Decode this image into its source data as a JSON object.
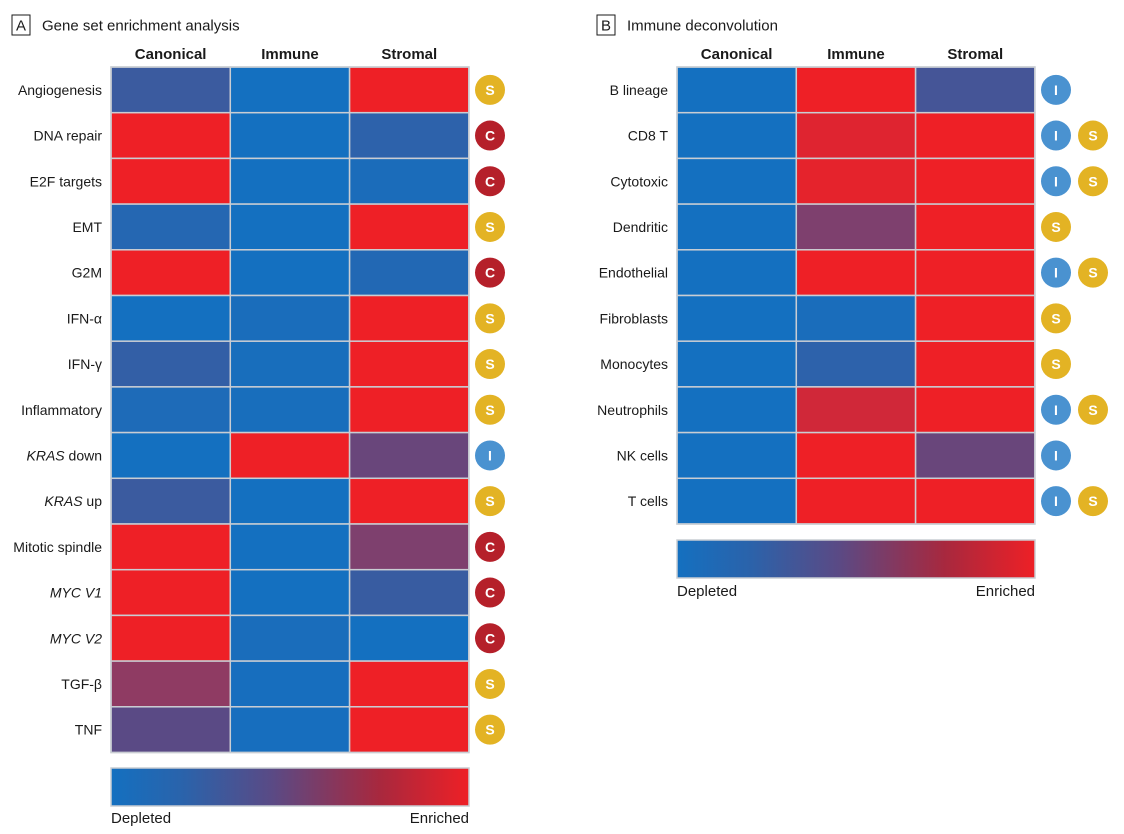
{
  "colors": {
    "depleted": "#1470c0",
    "mid": "#5a4a85",
    "enriched": "#ee2026",
    "badge_C": "#b5202a",
    "badge_S": "#e3b324",
    "badge_I": "#4a92d0"
  },
  "legend": {
    "low_label": "Depleted",
    "high_label": "Enriched"
  },
  "chart_data": [
    {
      "type": "heatmap",
      "panel_letter": "A",
      "title": "Gene set enrichment analysis",
      "columns": [
        "Canonical",
        "Immune",
        "Stromal"
      ],
      "value_range": [
        0,
        1
      ],
      "rows": [
        {
          "label": "Angiogenesis",
          "italic": "",
          "rest": "",
          "values": [
            0.28,
            0.0,
            1.0
          ],
          "badges": [
            "S"
          ]
        },
        {
          "label": "DNA repair",
          "italic": "",
          "rest": "",
          "values": [
            1.0,
            0.0,
            0.18
          ],
          "badges": [
            "C"
          ]
        },
        {
          "label": "E2F targets",
          "italic": "",
          "rest": "",
          "values": [
            1.0,
            0.0,
            0.05
          ],
          "badges": [
            "C"
          ]
        },
        {
          "label": "EMT",
          "italic": "",
          "rest": "",
          "values": [
            0.12,
            0.0,
            1.0
          ],
          "badges": [
            "S"
          ]
        },
        {
          "label": "G2M",
          "italic": "",
          "rest": "",
          "values": [
            1.0,
            0.0,
            0.1
          ],
          "badges": [
            "C"
          ]
        },
        {
          "label": "IFN-α",
          "italic": "",
          "rest": "",
          "values": [
            0.0,
            0.04,
            1.0
          ],
          "badges": [
            "S"
          ]
        },
        {
          "label": "IFN-γ",
          "italic": "",
          "rest": "",
          "values": [
            0.22,
            0.03,
            1.0
          ],
          "badges": [
            "S"
          ]
        },
        {
          "label": "Inflammatory",
          "italic": "",
          "rest": "",
          "values": [
            0.07,
            0.03,
            1.0
          ],
          "badges": [
            "S"
          ]
        },
        {
          "label": "KRAS down",
          "italic": "KRAS",
          "rest": " down",
          "values": [
            0.0,
            1.0,
            0.55
          ],
          "badges": [
            "I"
          ]
        },
        {
          "label": "KRAS up",
          "italic": "KRAS",
          "rest": " up",
          "values": [
            0.28,
            0.0,
            1.0
          ],
          "badges": [
            "S"
          ]
        },
        {
          "label": "Mitotic spindle",
          "italic": "",
          "rest": "",
          "values": [
            1.0,
            0.0,
            0.62
          ],
          "badges": [
            "C"
          ]
        },
        {
          "label": "MYC V1",
          "italic": "MYC V1",
          "rest": "",
          "values": [
            1.0,
            0.0,
            0.26
          ],
          "badges": [
            "C"
          ]
        },
        {
          "label": "MYC V2",
          "italic": "MYC V2",
          "rest": "",
          "values": [
            1.0,
            0.04,
            0.0
          ],
          "badges": [
            "C"
          ]
        },
        {
          "label": "TGF-β",
          "italic": "",
          "rest": "",
          "values": [
            0.68,
            0.02,
            1.0
          ],
          "badges": [
            "S"
          ]
        },
        {
          "label": "TNF",
          "italic": "",
          "rest": "",
          "values": [
            0.5,
            0.02,
            1.0
          ],
          "badges": [
            "S"
          ]
        }
      ]
    },
    {
      "type": "heatmap",
      "panel_letter": "B",
      "title": "Immune deconvolution",
      "columns": [
        "Canonical",
        "Immune",
        "Stromal"
      ],
      "value_range": [
        0,
        1
      ],
      "rows": [
        {
          "label": "B lineage",
          "italic": "",
          "rest": "",
          "values": [
            0.0,
            1.0,
            0.35
          ],
          "badges": [
            "I"
          ]
        },
        {
          "label": "CD8 T",
          "italic": "",
          "rest": "",
          "values": [
            0.0,
            0.95,
            1.0
          ],
          "badges": [
            "I",
            "S"
          ]
        },
        {
          "label": "Cytotoxic",
          "italic": "",
          "rest": "",
          "values": [
            0.0,
            0.97,
            1.0
          ],
          "badges": [
            "I",
            "S"
          ]
        },
        {
          "label": "Dendritic",
          "italic": "",
          "rest": "",
          "values": [
            0.0,
            0.62,
            1.0
          ],
          "badges": [
            "S"
          ]
        },
        {
          "label": "Endothelial",
          "italic": "",
          "rest": "",
          "values": [
            0.0,
            1.0,
            1.0
          ],
          "badges": [
            "I",
            "S"
          ]
        },
        {
          "label": "Fibroblasts",
          "italic": "",
          "rest": "",
          "values": [
            0.0,
            0.04,
            1.0
          ],
          "badges": [
            "S"
          ]
        },
        {
          "label": "Monocytes",
          "italic": "",
          "rest": "",
          "values": [
            0.0,
            0.18,
            1.0
          ],
          "badges": [
            "S"
          ]
        },
        {
          "label": "Neutrophils",
          "italic": "",
          "rest": "",
          "values": [
            0.0,
            0.9,
            1.0
          ],
          "badges": [
            "I",
            "S"
          ]
        },
        {
          "label": "NK cells",
          "italic": "",
          "rest": "",
          "values": [
            0.0,
            1.0,
            0.55
          ],
          "badges": [
            "I"
          ]
        },
        {
          "label": "T cells",
          "italic": "",
          "rest": "",
          "values": [
            0.0,
            1.0,
            1.0
          ],
          "badges": [
            "I",
            "S"
          ]
        }
      ]
    }
  ]
}
